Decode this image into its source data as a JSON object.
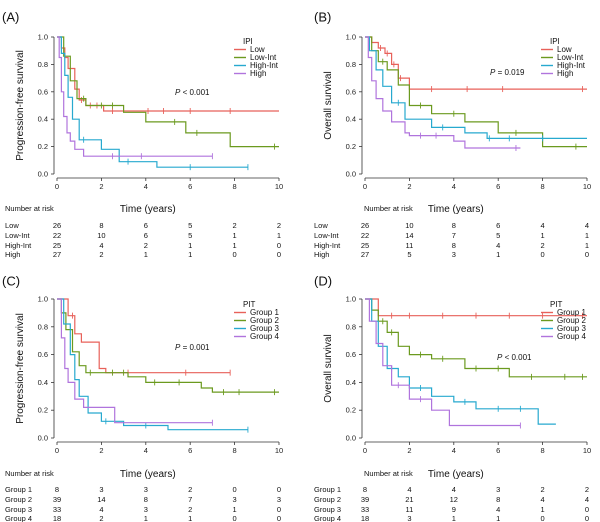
{
  "figure": {
    "description_free": true
  },
  "colors": {
    "red": "#e8615a",
    "green": "#6b9a1f",
    "cyan": "#27a9cf",
    "purple": "#b074dd",
    "axis": "#333333"
  },
  "risk_label": "Number at risk",
  "chart_data": [
    {
      "panel_label": "(A)",
      "type": "line",
      "ylabel": "Progression-free survival",
      "xlabel": "Time (years)",
      "xlim": [
        0,
        10
      ],
      "ylim": [
        0,
        1.0
      ],
      "xticks": [
        "0",
        "2",
        "4",
        "6",
        "8",
        "10"
      ],
      "yticks": [
        "0.0",
        "0.2",
        "0.4",
        "0.6",
        "0.8",
        "1.0"
      ],
      "legend_title": "IPI",
      "pvalue_prefix": "P",
      "pvalue_rest": " < 0.001",
      "series": [
        {
          "name": "Low",
          "color": "#e8615a",
          "steps": [
            [
              0,
              1.0
            ],
            [
              0.2,
              0.92
            ],
            [
              0.35,
              0.85
            ],
            [
              0.5,
              0.77
            ],
            [
              0.8,
              0.62
            ],
            [
              1.0,
              0.54
            ],
            [
              1.3,
              0.5
            ],
            [
              2.1,
              0.46
            ],
            [
              10,
              0.46
            ]
          ],
          "censor": [
            1.1,
            1.5,
            1.8,
            2.5,
            4.1,
            4.8,
            6.0,
            7.8
          ]
        },
        {
          "name": "Low-Int",
          "color": "#6b9a1f",
          "steps": [
            [
              0,
              1.0
            ],
            [
              0.3,
              0.86
            ],
            [
              0.6,
              0.68
            ],
            [
              0.9,
              0.55
            ],
            [
              1.3,
              0.5
            ],
            [
              3.0,
              0.45
            ],
            [
              4.0,
              0.38
            ],
            [
              5.8,
              0.3
            ],
            [
              7.8,
              0.2
            ],
            [
              10,
              0.2
            ]
          ],
          "censor": [
            1.2,
            2.0,
            2.5,
            5.3,
            6.3,
            9.8
          ]
        },
        {
          "name": "High-Int",
          "color": "#27a9cf",
          "steps": [
            [
              0,
              1.0
            ],
            [
              0.2,
              0.88
            ],
            [
              0.35,
              0.72
            ],
            [
              0.5,
              0.56
            ],
            [
              0.7,
              0.4
            ],
            [
              1.0,
              0.25
            ],
            [
              2.0,
              0.18
            ],
            [
              2.8,
              0.09
            ],
            [
              4.5,
              0.05
            ],
            [
              8.6,
              0.05
            ]
          ],
          "censor": [
            1.2,
            3.2,
            6.0,
            8.6
          ]
        },
        {
          "name": "High",
          "color": "#b074dd",
          "steps": [
            [
              0,
              1.0
            ],
            [
              0.1,
              0.85
            ],
            [
              0.2,
              0.6
            ],
            [
              0.3,
              0.42
            ],
            [
              0.45,
              0.3
            ],
            [
              0.6,
              0.24
            ],
            [
              0.8,
              0.18
            ],
            [
              1.2,
              0.13
            ],
            [
              7.0,
              0.13
            ]
          ],
          "censor": [
            2.5,
            3.8,
            7.0
          ]
        }
      ],
      "risk": [
        {
          "group": "Low",
          "values": [
            "26",
            "8",
            "6",
            "5",
            "2",
            "2"
          ]
        },
        {
          "group": "Low-Int",
          "values": [
            "22",
            "10",
            "6",
            "5",
            "1",
            "1"
          ]
        },
        {
          "group": "High-Int",
          "values": [
            "25",
            "4",
            "2",
            "1",
            "1",
            "0"
          ]
        },
        {
          "group": "High",
          "values": [
            "27",
            "2",
            "1",
            "1",
            "0",
            "0"
          ]
        }
      ]
    },
    {
      "panel_label": "(B)",
      "type": "line",
      "ylabel": "Overall survival",
      "xlabel": "Time (years)",
      "xlim": [
        0,
        10
      ],
      "ylim": [
        0,
        1.0
      ],
      "xticks": [
        "0",
        "2",
        "4",
        "6",
        "8",
        "10"
      ],
      "yticks": [
        "0.0",
        "0.2",
        "0.4",
        "0.6",
        "0.8",
        "1.0"
      ],
      "legend_title": "IPI",
      "pvalue_prefix": "P",
      "pvalue_rest": " = 0.019",
      "series": [
        {
          "name": "Low",
          "color": "#e8615a",
          "steps": [
            [
              0,
              1.0
            ],
            [
              0.3,
              0.96
            ],
            [
              0.6,
              0.92
            ],
            [
              0.9,
              0.88
            ],
            [
              1.2,
              0.8
            ],
            [
              1.5,
              0.7
            ],
            [
              2.0,
              0.62
            ],
            [
              10,
              0.62
            ]
          ],
          "censor": [
            0.7,
            1.0,
            1.3,
            1.6,
            3.0,
            4.6,
            6.2,
            9.8
          ]
        },
        {
          "name": "Low-Int",
          "color": "#6b9a1f",
          "steps": [
            [
              0,
              1.0
            ],
            [
              0.3,
              0.9
            ],
            [
              0.6,
              0.82
            ],
            [
              1.0,
              0.76
            ],
            [
              1.5,
              0.65
            ],
            [
              2.0,
              0.5
            ],
            [
              3.0,
              0.44
            ],
            [
              4.5,
              0.38
            ],
            [
              6.0,
              0.3
            ],
            [
              8.0,
              0.2
            ],
            [
              10,
              0.2
            ]
          ],
          "censor": [
            0.8,
            2.5,
            4.0,
            6.8,
            9.5
          ]
        },
        {
          "name": "High-Int",
          "color": "#27a9cf",
          "steps": [
            [
              0,
              1.0
            ],
            [
              0.2,
              0.9
            ],
            [
              0.5,
              0.76
            ],
            [
              0.8,
              0.64
            ],
            [
              1.2,
              0.52
            ],
            [
              1.8,
              0.4
            ],
            [
              3.0,
              0.34
            ],
            [
              4.5,
              0.3
            ],
            [
              5.5,
              0.26
            ],
            [
              10,
              0.26
            ]
          ],
          "censor": [
            1.5,
            3.5,
            5.6,
            6.5,
            8.0
          ]
        },
        {
          "name": "High",
          "color": "#b074dd",
          "steps": [
            [
              0,
              1.0
            ],
            [
              0.15,
              0.85
            ],
            [
              0.3,
              0.68
            ],
            [
              0.5,
              0.55
            ],
            [
              0.8,
              0.46
            ],
            [
              1.2,
              0.38
            ],
            [
              1.8,
              0.3
            ],
            [
              2.0,
              0.28
            ],
            [
              4.0,
              0.24
            ],
            [
              4.5,
              0.19
            ],
            [
              7.0,
              0.19
            ]
          ],
          "censor": [
            2.5,
            3.2,
            6.8
          ]
        }
      ],
      "risk": [
        {
          "group": "Low",
          "values": [
            "26",
            "10",
            "8",
            "6",
            "4",
            "4"
          ]
        },
        {
          "group": "Low-Int",
          "values": [
            "22",
            "14",
            "7",
            "5",
            "1",
            "1"
          ]
        },
        {
          "group": "High-Int",
          "values": [
            "25",
            "11",
            "8",
            "4",
            "2",
            "1"
          ]
        },
        {
          "group": "High",
          "values": [
            "27",
            "5",
            "3",
            "1",
            "0",
            "0"
          ]
        }
      ]
    },
    {
      "panel_label": "(C)",
      "type": "line",
      "ylabel": "Progression-free survival",
      "xlabel": "Time (years)",
      "xlim": [
        0,
        10
      ],
      "ylim": [
        0,
        1.0
      ],
      "xticks": [
        "0",
        "2",
        "4",
        "6",
        "8",
        "10"
      ],
      "yticks": [
        "0.0",
        "0.2",
        "0.4",
        "0.6",
        "0.8",
        "1.0"
      ],
      "legend_title": "PIT",
      "pvalue_prefix": "P",
      "pvalue_rest": " = 0.001",
      "series": [
        {
          "name": "Group 1",
          "color": "#e8615a",
          "steps": [
            [
              0,
              1.0
            ],
            [
              0.5,
              0.88
            ],
            [
              0.8,
              0.75
            ],
            [
              1.1,
              0.69
            ],
            [
              1.9,
              0.5
            ],
            [
              2.2,
              0.47
            ],
            [
              7.8,
              0.47
            ]
          ],
          "censor": [
            0.7,
            3.2,
            5.8,
            7.8
          ]
        },
        {
          "name": "Group 2",
          "color": "#6b9a1f",
          "steps": [
            [
              0,
              1.0
            ],
            [
              0.2,
              0.9
            ],
            [
              0.4,
              0.78
            ],
            [
              0.7,
              0.62
            ],
            [
              1.0,
              0.52
            ],
            [
              1.3,
              0.47
            ],
            [
              3.2,
              0.44
            ],
            [
              4.0,
              0.4
            ],
            [
              6.5,
              0.36
            ],
            [
              7.0,
              0.33
            ],
            [
              10,
              0.33
            ]
          ],
          "censor": [
            1.5,
            2.5,
            3.0,
            4.4,
            5.5,
            7.5,
            8.2,
            9.8
          ]
        },
        {
          "name": "Group 3",
          "color": "#27a9cf",
          "steps": [
            [
              0,
              1.0
            ],
            [
              0.3,
              0.82
            ],
            [
              0.6,
              0.6
            ],
            [
              0.8,
              0.42
            ],
            [
              1.0,
              0.3
            ],
            [
              1.4,
              0.18
            ],
            [
              2.0,
              0.12
            ],
            [
              3.0,
              0.09
            ],
            [
              5.0,
              0.06
            ],
            [
              8.6,
              0.06
            ]
          ],
          "censor": [
            2.2,
            4.0,
            8.6
          ]
        },
        {
          "name": "Group 4",
          "color": "#b074dd",
          "steps": [
            [
              0,
              1.0
            ],
            [
              0.2,
              0.72
            ],
            [
              0.35,
              0.5
            ],
            [
              0.5,
              0.4
            ],
            [
              0.8,
              0.28
            ],
            [
              1.2,
              0.22
            ],
            [
              2.6,
              0.11
            ],
            [
              7.0,
              0.11
            ]
          ],
          "censor": [
            7.0
          ]
        }
      ],
      "risk": [
        {
          "group": "Group 1",
          "values": [
            "8",
            "3",
            "3",
            "2",
            "0",
            "0"
          ]
        },
        {
          "group": "Group 2",
          "values": [
            "39",
            "14",
            "8",
            "7",
            "3",
            "3"
          ]
        },
        {
          "group": "Group 3",
          "values": [
            "33",
            "4",
            "3",
            "2",
            "1",
            "0"
          ]
        },
        {
          "group": "Group 4",
          "values": [
            "18",
            "2",
            "1",
            "1",
            "0",
            "0"
          ]
        }
      ]
    },
    {
      "panel_label": "(D)",
      "type": "line",
      "ylabel": "Overall survival",
      "xlabel": "Time (years)",
      "xlim": [
        0,
        10
      ],
      "ylim": [
        0,
        1.0
      ],
      "xticks": [
        "0",
        "2",
        "4",
        "6",
        "8",
        "10"
      ],
      "yticks": [
        "0.0",
        "0.2",
        "0.4",
        "0.6",
        "0.8",
        "1.0"
      ],
      "legend_title": "PIT",
      "pvalue_prefix": "P",
      "pvalue_rest": " < 0.001",
      "series": [
        {
          "name": "Group 1",
          "color": "#e8615a",
          "steps": [
            [
              0,
              1.0
            ],
            [
              0.6,
              0.88
            ],
            [
              10,
              0.88
            ]
          ],
          "censor": [
            1.2,
            2.0,
            3.5,
            5.0,
            6.5,
            8.0,
            9.8
          ]
        },
        {
          "name": "Group 2",
          "color": "#6b9a1f",
          "steps": [
            [
              0,
              1.0
            ],
            [
              0.3,
              0.92
            ],
            [
              0.6,
              0.84
            ],
            [
              1.0,
              0.76
            ],
            [
              1.5,
              0.66
            ],
            [
              2.0,
              0.6
            ],
            [
              3.0,
              0.57
            ],
            [
              4.5,
              0.5
            ],
            [
              6.5,
              0.44
            ],
            [
              10,
              0.44
            ]
          ],
          "censor": [
            0.8,
            1.2,
            2.5,
            3.5,
            5.0,
            6.0,
            7.5,
            9.0,
            9.8
          ]
        },
        {
          "name": "Group 3",
          "color": "#27a9cf",
          "steps": [
            [
              0,
              1.0
            ],
            [
              0.3,
              0.84
            ],
            [
              0.6,
              0.66
            ],
            [
              1.0,
              0.5
            ],
            [
              1.5,
              0.44
            ],
            [
              2.0,
              0.36
            ],
            [
              3.0,
              0.3
            ],
            [
              4.0,
              0.26
            ],
            [
              5.0,
              0.21
            ],
            [
              7.8,
              0.1
            ],
            [
              8.6,
              0.1
            ]
          ],
          "censor": [
            1.2,
            2.5,
            4.5,
            6.0,
            7.0
          ]
        },
        {
          "name": "Group 4",
          "color": "#b074dd",
          "steps": [
            [
              0,
              1.0
            ],
            [
              0.2,
              0.84
            ],
            [
              0.5,
              0.68
            ],
            [
              0.8,
              0.52
            ],
            [
              1.2,
              0.38
            ],
            [
              2.0,
              0.28
            ],
            [
              3.0,
              0.2
            ],
            [
              3.8,
              0.09
            ],
            [
              7.0,
              0.09
            ]
          ],
          "censor": [
            1.5,
            2.5,
            7.0
          ]
        }
      ],
      "risk": [
        {
          "group": "Group 1",
          "values": [
            "8",
            "4",
            "4",
            "3",
            "2",
            "2"
          ]
        },
        {
          "group": "Group 2",
          "values": [
            "39",
            "21",
            "12",
            "8",
            "4",
            "4"
          ]
        },
        {
          "group": "Group 3",
          "values": [
            "33",
            "11",
            "9",
            "4",
            "1",
            "0"
          ]
        },
        {
          "group": "Group 4",
          "values": [
            "18",
            "3",
            "1",
            "1",
            "0",
            "0"
          ]
        }
      ]
    }
  ]
}
